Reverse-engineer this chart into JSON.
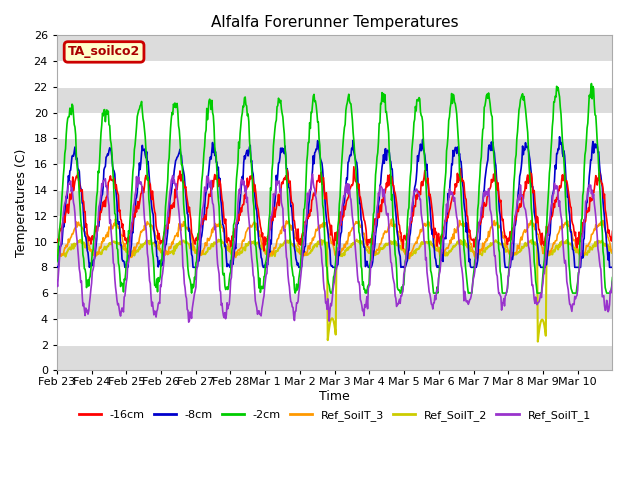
{
  "title": "Alfalfa Forerunner Temperatures",
  "xlabel": "Time",
  "ylabel": "Temperatures (C)",
  "annotation": "TA_soilco2",
  "ylim": [
    0,
    26
  ],
  "series_colors": {
    "-16cm": "#ff0000",
    "-8cm": "#0000cc",
    "-2cm": "#00cc00",
    "Ref_SoilT_3": "#ff9900",
    "Ref_SoilT_2": "#cccc00",
    "Ref_SoilT_1": "#9933cc"
  },
  "plot_bg": "#ffffff",
  "band_color": "#dcdcdc",
  "yticks": [
    0,
    2,
    4,
    6,
    8,
    10,
    12,
    14,
    16,
    18,
    20,
    22,
    24,
    26
  ],
  "xtick_labels": [
    "Feb 23",
    "Feb 24",
    "Feb 25",
    "Feb 26",
    "Feb 27",
    "Feb 28",
    "Mar 1",
    "Mar 2",
    "Mar 3",
    "Mar 4",
    "Mar 5",
    "Mar 6",
    "Mar 7",
    "Mar 8",
    "Mar 9",
    "Mar 10"
  ],
  "num_days": 16,
  "pts_per_day": 48,
  "annotation_bbox": {
    "facecolor": "#ffffcc",
    "edgecolor": "#cc0000",
    "lw": 2
  }
}
